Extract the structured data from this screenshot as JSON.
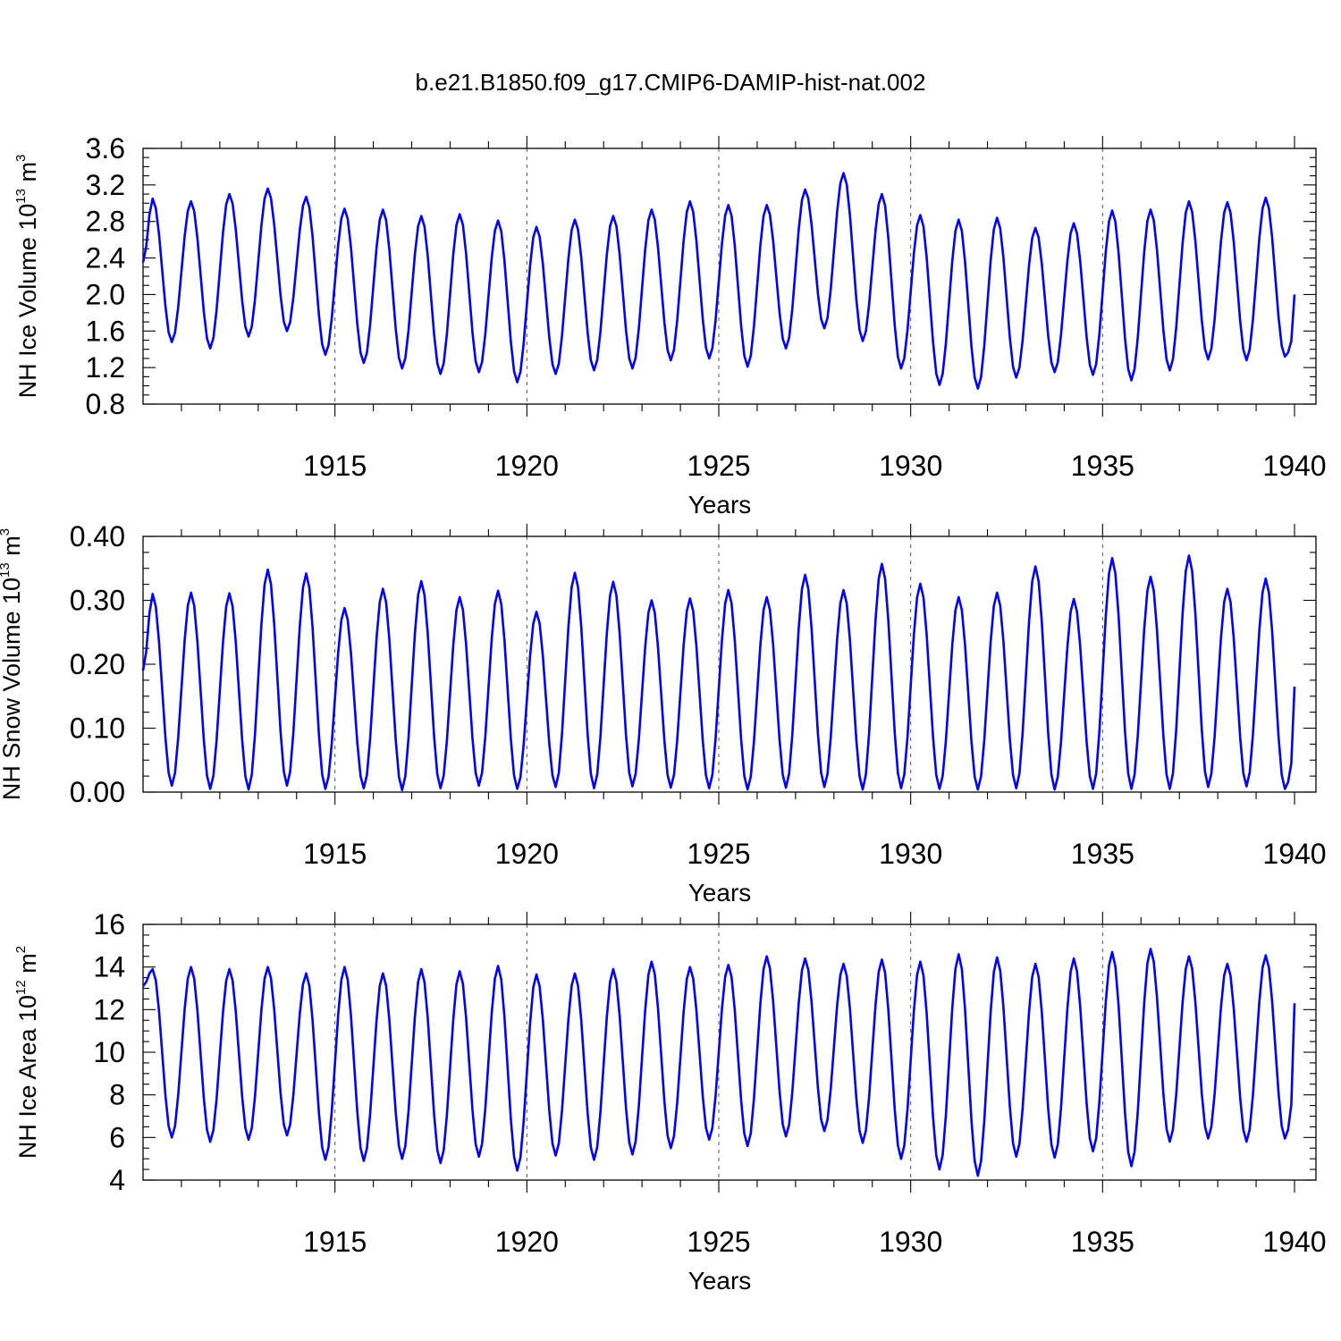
{
  "title": "b.e21.B1850.f09_g17.CMIP6-DAMIP-hist-nat.002",
  "colors": {
    "series": "#0000ff",
    "axes": "#000000",
    "background": "#ffffff"
  },
  "chart_data": [
    {
      "type": "line",
      "ylabel": {
        "text": "NH Ice Volume 10",
        "exp": "13",
        "unit": " m",
        "unit_exp": "3"
      },
      "xlabel": "Years",
      "xlim": [
        1910,
        1940
      ],
      "ylim": [
        0.8,
        3.6
      ],
      "yticks": [
        "0.8",
        "1.2",
        "1.6",
        "2.0",
        "2.4",
        "2.8",
        "3.2",
        "3.6"
      ],
      "ytick_values": [
        0.8,
        1.2,
        1.6,
        2.0,
        2.4,
        2.8,
        3.2,
        3.6
      ],
      "xticks": [
        "1915",
        "1920",
        "1925",
        "1930",
        "1935",
        "1940"
      ],
      "xtick_values": [
        1915,
        1920,
        1925,
        1930,
        1935,
        1940
      ],
      "grid_x": true,
      "series": [
        {
          "name": "NH Ice Volume",
          "start_year": 1910,
          "step_months": 1,
          "annual_max": [
            3.05,
            3.02,
            3.1,
            3.16,
            3.07,
            2.94,
            2.93,
            2.86,
            2.88,
            2.81,
            2.74,
            2.82,
            2.86,
            2.93,
            3.02,
            2.98,
            2.98,
            3.15,
            3.33,
            3.1,
            2.87,
            2.82,
            2.84,
            2.73,
            2.78,
            2.92,
            2.93,
            3.02,
            3.01,
            3.06
          ],
          "annual_min": [
            1.48,
            1.41,
            1.54,
            1.6,
            1.34,
            1.25,
            1.19,
            1.13,
            1.15,
            1.04,
            1.13,
            1.17,
            1.19,
            1.28,
            1.3,
            1.21,
            1.41,
            1.63,
            1.49,
            1.19,
            1.01,
            0.97,
            1.09,
            1.15,
            1.12,
            1.06,
            1.17,
            1.29,
            1.28,
            1.32
          ],
          "start_value": 2.35,
          "end_value": 2.0
        }
      ]
    },
    {
      "type": "line",
      "ylabel": {
        "text": "NH Snow Volume 10",
        "exp": "13",
        "unit": " m",
        "unit_exp": "3"
      },
      "xlabel": "Years",
      "xlim": [
        1910,
        1940
      ],
      "ylim": [
        0.0,
        0.4
      ],
      "yticks": [
        "0.00",
        "0.10",
        "0.20",
        "0.30",
        "0.40"
      ],
      "ytick_values": [
        0.0,
        0.1,
        0.2,
        0.3,
        0.4
      ],
      "xticks": [
        "1915",
        "1920",
        "1925",
        "1930",
        "1935",
        "1940"
      ],
      "xtick_values": [
        1915,
        1920,
        1925,
        1930,
        1935,
        1940
      ],
      "grid_x": true,
      "series": [
        {
          "name": "NH Snow Volume",
          "start_year": 1910,
          "step_months": 1,
          "annual_max": [
            0.31,
            0.312,
            0.311,
            0.348,
            0.342,
            0.288,
            0.318,
            0.33,
            0.305,
            0.315,
            0.282,
            0.343,
            0.329,
            0.3,
            0.303,
            0.316,
            0.305,
            0.34,
            0.316,
            0.357,
            0.326,
            0.305,
            0.312,
            0.353,
            0.302,
            0.366,
            0.337,
            0.37,
            0.318,
            0.334
          ],
          "annual_min": [
            0.01,
            0.005,
            0.004,
            0.01,
            0.005,
            0.006,
            0.003,
            0.006,
            0.01,
            0.005,
            0.008,
            0.006,
            0.009,
            0.007,
            0.006,
            0.004,
            0.007,
            0.008,
            0.004,
            0.006,
            0.005,
            0.004,
            0.006,
            0.004,
            0.005,
            0.005,
            0.005,
            0.008,
            0.009,
            0.005
          ],
          "start_value": 0.19,
          "end_value": 0.165
        }
      ]
    },
    {
      "type": "line",
      "ylabel": {
        "text": "NH Ice Area 10",
        "exp": "12",
        "unit": " m",
        "unit_exp": "2"
      },
      "xlabel": "Years",
      "xlim": [
        1910,
        1940
      ],
      "ylim": [
        4,
        16
      ],
      "yticks": [
        "4",
        "6",
        "8",
        "10",
        "12",
        "14",
        "16"
      ],
      "ytick_values": [
        4,
        6,
        8,
        10,
        12,
        14,
        16
      ],
      "xticks": [
        "1915",
        "1920",
        "1925",
        "1930",
        "1935",
        "1940"
      ],
      "xtick_values": [
        1915,
        1920,
        1925,
        1930,
        1935,
        1940
      ],
      "grid_x": true,
      "series": [
        {
          "name": "NH Ice Area",
          "start_year": 1910,
          "step_months": 1,
          "annual_max": [
            13.9,
            14.0,
            13.9,
            14.0,
            13.7,
            14.0,
            13.7,
            13.9,
            13.8,
            14.05,
            13.65,
            13.7,
            13.9,
            14.25,
            14.0,
            14.1,
            14.5,
            14.4,
            14.15,
            14.35,
            14.25,
            14.6,
            14.45,
            14.15,
            14.4,
            14.7,
            14.85,
            14.5,
            14.15,
            14.55
          ],
          "annual_min": [
            6.0,
            5.8,
            5.9,
            6.1,
            4.95,
            4.9,
            5.0,
            4.8,
            5.1,
            4.45,
            5.15,
            4.95,
            5.2,
            5.5,
            5.9,
            5.6,
            6.05,
            6.3,
            5.75,
            5.0,
            4.5,
            4.2,
            5.1,
            5.05,
            5.35,
            4.65,
            5.8,
            5.95,
            5.8,
            5.95
          ],
          "start_value": 13.1,
          "end_value": 12.3
        }
      ]
    }
  ]
}
